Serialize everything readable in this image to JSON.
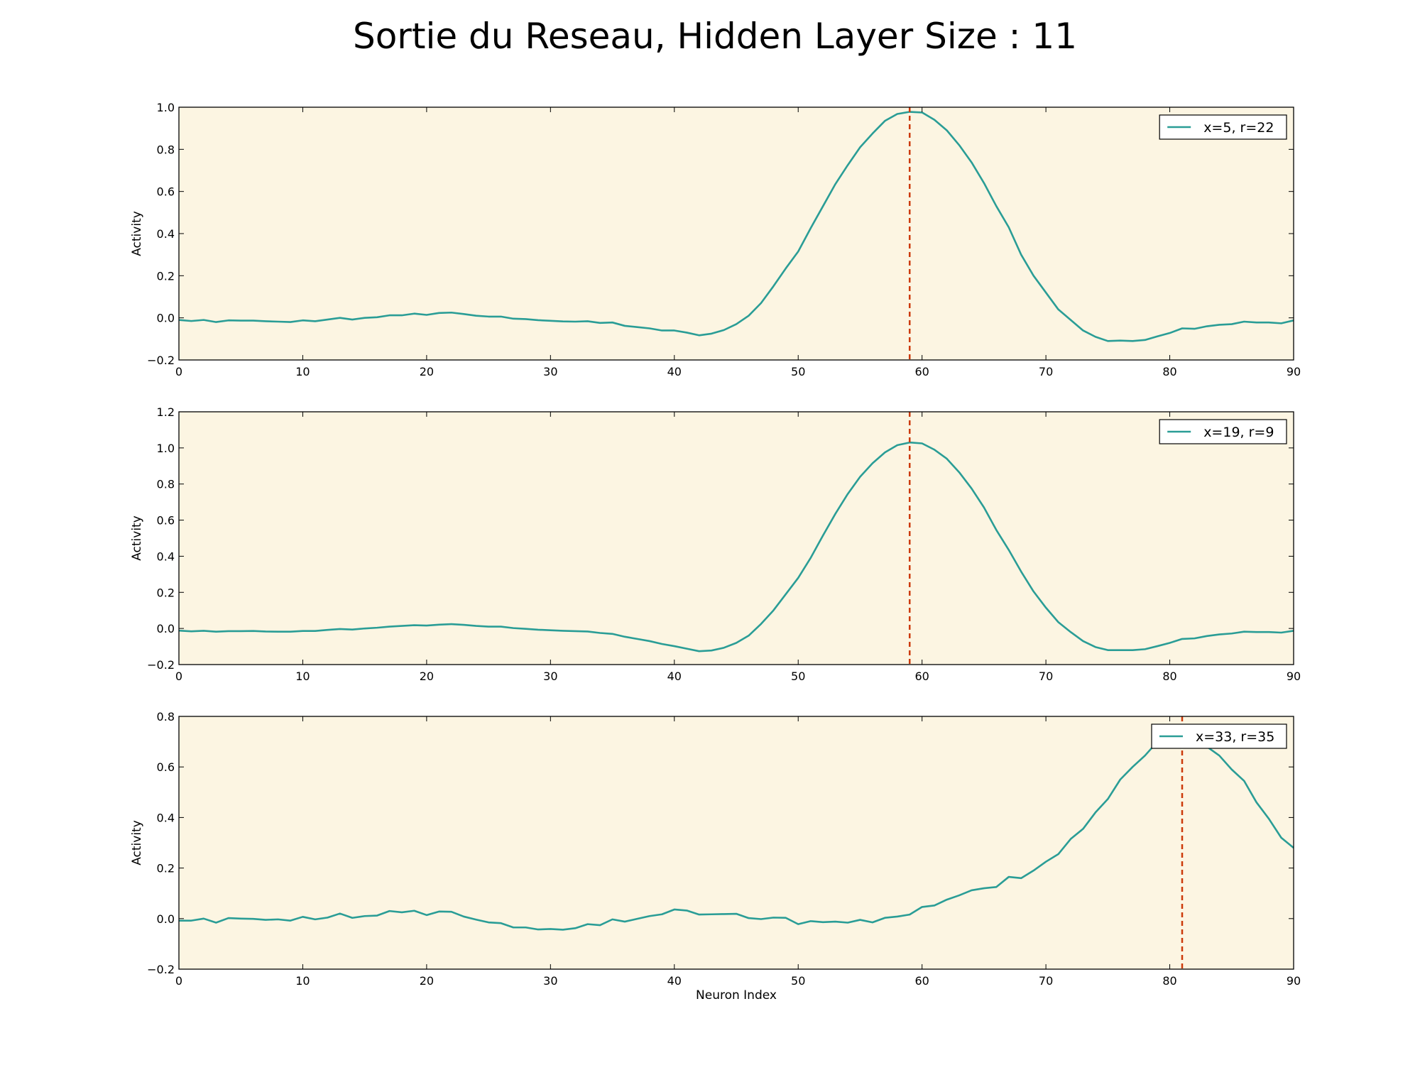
{
  "title": "Sortie du Reseau, Hidden Layer Size : 11",
  "colors": {
    "line": "#2a9d96",
    "marker": "#cc3a0a",
    "plot_background": "#fcf5e2",
    "axes": "#000000"
  },
  "chart_data": [
    {
      "type": "line",
      "title": "",
      "xlabel": "",
      "ylabel": "Activity",
      "xlim": [
        0,
        90
      ],
      "ylim": [
        -0.2,
        1.0
      ],
      "xticks": [
        0,
        10,
        20,
        30,
        40,
        50,
        60,
        70,
        80,
        90
      ],
      "yticks": [
        -0.2,
        0.0,
        0.2,
        0.4,
        0.6,
        0.8,
        1.0
      ],
      "ytick_decimals": 1,
      "grid": false,
      "legend_position": "top-right",
      "vline_x": 59,
      "series": [
        {
          "name": "x=5, r=22",
          "x": [
            0,
            1,
            2,
            3,
            4,
            5,
            6,
            7,
            8,
            9,
            10,
            11,
            12,
            13,
            14,
            15,
            16,
            17,
            18,
            19,
            20,
            21,
            22,
            23,
            24,
            25,
            26,
            27,
            28,
            29,
            30,
            31,
            32,
            33,
            34,
            35,
            36,
            37,
            38,
            39,
            40,
            41,
            42,
            43,
            44,
            45,
            46,
            47,
            48,
            49,
            50,
            51,
            52,
            53,
            54,
            55,
            56,
            57,
            58,
            59,
            60,
            61,
            62,
            63,
            64,
            65,
            66,
            67,
            68,
            69,
            70,
            71,
            72,
            73,
            74,
            75,
            76,
            77,
            78,
            79,
            80,
            81,
            82,
            83,
            84,
            85,
            86,
            87,
            88,
            89,
            90
          ],
          "values": [
            -0.01,
            -0.015,
            -0.01,
            -0.02,
            -0.012,
            -0.013,
            -0.013,
            -0.016,
            -0.018,
            -0.02,
            -0.012,
            -0.016,
            -0.008,
            0.0,
            -0.008,
            0.0,
            0.003,
            0.012,
            0.012,
            0.02,
            0.014,
            0.023,
            0.025,
            0.018,
            0.01,
            0.006,
            0.006,
            -0.004,
            -0.006,
            -0.011,
            -0.014,
            -0.017,
            -0.018,
            -0.016,
            -0.024,
            -0.022,
            -0.038,
            -0.044,
            -0.05,
            -0.06,
            -0.06,
            -0.07,
            -0.083,
            -0.075,
            -0.058,
            -0.03,
            0.01,
            0.07,
            0.15,
            0.235,
            0.315,
            0.425,
            0.53,
            0.635,
            0.725,
            0.81,
            0.875,
            0.935,
            0.968,
            0.978,
            0.975,
            0.94,
            0.89,
            0.82,
            0.738,
            0.64,
            0.53,
            0.43,
            0.3,
            0.2,
            0.12,
            0.04,
            -0.01,
            -0.06,
            -0.09,
            -0.11,
            -0.108,
            -0.11,
            -0.105,
            -0.088,
            -0.072,
            -0.05,
            -0.052,
            -0.04,
            -0.033,
            -0.03,
            -0.018,
            -0.022,
            -0.022,
            -0.026,
            -0.012
          ]
        }
      ]
    },
    {
      "type": "line",
      "title": "",
      "xlabel": "",
      "ylabel": "Activity",
      "xlim": [
        0,
        90
      ],
      "ylim": [
        -0.2,
        1.2
      ],
      "xticks": [
        0,
        10,
        20,
        30,
        40,
        50,
        60,
        70,
        80,
        90
      ],
      "yticks": [
        -0.2,
        0.0,
        0.2,
        0.4,
        0.6,
        0.8,
        1.0,
        1.2
      ],
      "ytick_decimals": 1,
      "grid": false,
      "legend_position": "top-right",
      "vline_x": 59,
      "series": [
        {
          "name": "x=19, r=9",
          "x": [
            0,
            1,
            2,
            3,
            4,
            5,
            6,
            7,
            8,
            9,
            10,
            11,
            12,
            13,
            14,
            15,
            16,
            17,
            18,
            19,
            20,
            21,
            22,
            23,
            24,
            25,
            26,
            27,
            28,
            29,
            30,
            31,
            32,
            33,
            34,
            35,
            36,
            37,
            38,
            39,
            40,
            41,
            42,
            43,
            44,
            45,
            46,
            47,
            48,
            49,
            50,
            51,
            52,
            53,
            54,
            55,
            56,
            57,
            58,
            59,
            60,
            61,
            62,
            63,
            64,
            65,
            66,
            67,
            68,
            69,
            70,
            71,
            72,
            73,
            74,
            75,
            76,
            77,
            78,
            79,
            80,
            81,
            82,
            83,
            84,
            85,
            86,
            87,
            88,
            89,
            90
          ],
          "values": [
            -0.012,
            -0.016,
            -0.013,
            -0.018,
            -0.015,
            -0.015,
            -0.014,
            -0.017,
            -0.018,
            -0.018,
            -0.014,
            -0.014,
            -0.008,
            -0.003,
            -0.006,
            0.0,
            0.004,
            0.01,
            0.014,
            0.018,
            0.016,
            0.021,
            0.024,
            0.02,
            0.014,
            0.01,
            0.01,
            0.002,
            -0.002,
            -0.007,
            -0.01,
            -0.013,
            -0.015,
            -0.017,
            -0.025,
            -0.03,
            -0.046,
            -0.058,
            -0.07,
            -0.086,
            -0.098,
            -0.112,
            -0.126,
            -0.122,
            -0.107,
            -0.08,
            -0.04,
            0.025,
            0.1,
            0.19,
            0.28,
            0.39,
            0.515,
            0.635,
            0.745,
            0.84,
            0.915,
            0.975,
            1.015,
            1.03,
            1.025,
            0.99,
            0.94,
            0.865,
            0.775,
            0.67,
            0.545,
            0.435,
            0.315,
            0.205,
            0.115,
            0.035,
            -0.02,
            -0.07,
            -0.103,
            -0.12,
            -0.12,
            -0.12,
            -0.115,
            -0.098,
            -0.08,
            -0.058,
            -0.055,
            -0.042,
            -0.033,
            -0.028,
            -0.018,
            -0.02,
            -0.02,
            -0.023,
            -0.013
          ]
        }
      ]
    },
    {
      "type": "line",
      "title": "",
      "xlabel": "Neuron Index",
      "ylabel": "Activity",
      "xlim": [
        0,
        90
      ],
      "ylim": [
        -0.2,
        0.8
      ],
      "xticks": [
        0,
        10,
        20,
        30,
        40,
        50,
        60,
        70,
        80,
        90
      ],
      "yticks": [
        -0.2,
        0.0,
        0.2,
        0.4,
        0.6,
        0.8
      ],
      "ytick_decimals": 1,
      "grid": false,
      "legend_position": "top-right",
      "vline_x": 81,
      "series": [
        {
          "name": "x=33, r=35",
          "x": [
            0,
            1,
            2,
            3,
            4,
            5,
            6,
            7,
            8,
            9,
            10,
            11,
            12,
            13,
            14,
            15,
            16,
            17,
            18,
            19,
            20,
            21,
            22,
            23,
            24,
            25,
            26,
            27,
            28,
            29,
            30,
            31,
            32,
            33,
            34,
            35,
            36,
            37,
            38,
            39,
            40,
            41,
            42,
            43,
            44,
            45,
            46,
            47,
            48,
            49,
            50,
            51,
            52,
            53,
            54,
            55,
            56,
            57,
            58,
            59,
            60,
            61,
            62,
            63,
            64,
            65,
            66,
            67,
            68,
            69,
            70,
            71,
            72,
            73,
            74,
            75,
            76,
            77,
            78,
            79,
            80,
            81,
            82,
            83,
            84,
            85,
            86,
            87,
            88,
            89,
            90
          ],
          "values": [
            -0.008,
            -0.008,
            0.0,
            -0.016,
            0.002,
            0.0,
            -0.001,
            -0.005,
            -0.003,
            -0.008,
            0.007,
            -0.003,
            0.004,
            0.02,
            0.003,
            0.01,
            0.012,
            0.03,
            0.025,
            0.031,
            0.014,
            0.028,
            0.027,
            0.008,
            -0.004,
            -0.015,
            -0.018,
            -0.035,
            -0.035,
            -0.043,
            -0.041,
            -0.044,
            -0.038,
            -0.022,
            -0.026,
            -0.003,
            -0.012,
            -0.001,
            0.01,
            0.017,
            0.036,
            0.032,
            0.016,
            0.017,
            0.018,
            0.019,
            0.002,
            -0.002,
            0.004,
            0.003,
            -0.022,
            -0.01,
            -0.014,
            -0.012,
            -0.016,
            -0.005,
            -0.015,
            0.003,
            0.008,
            0.016,
            0.046,
            0.052,
            0.075,
            0.092,
            0.112,
            0.12,
            0.125,
            0.165,
            0.16,
            0.19,
            0.225,
            0.255,
            0.315,
            0.355,
            0.42,
            0.473,
            0.55,
            0.6,
            0.645,
            0.7,
            0.72,
            0.715,
            0.705,
            0.68,
            0.645,
            0.59,
            0.545,
            0.46,
            0.395,
            0.32,
            0.28
          ]
        }
      ]
    }
  ]
}
